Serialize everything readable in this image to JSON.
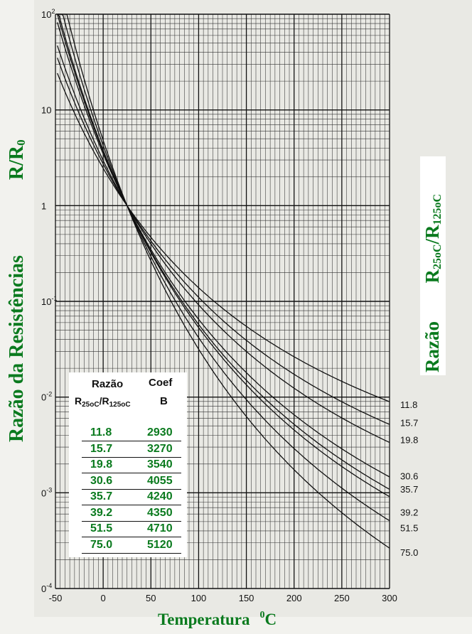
{
  "chart_data": {
    "type": "line",
    "title": "",
    "xlabel": "Temperatura",
    "xlabel_unit_sup": "0",
    "xlabel_unit": "C",
    "ylabel_left_main": "Razão da Resistências",
    "ylabel_left_ratio": "R/R",
    "ylabel_left_sub": "0",
    "ylabel_right_main": "Razão",
    "ylabel_right_r1": "R",
    "ylabel_right_sub1": "25oC",
    "ylabel_right_r2": "/R",
    "ylabel_right_sub2": "125oC",
    "y_scale": "log",
    "xlim": [
      -50,
      300
    ],
    "ylim": [
      0.0001,
      100
    ],
    "x_ticks": [
      -50,
      0,
      50,
      100,
      150,
      200,
      250,
      300
    ],
    "x_tick_labels": [
      "-50",
      "0",
      "50",
      "100",
      "150",
      "200",
      "250",
      "300"
    ],
    "y_ticks": [
      {
        "base": "10",
        "exp": "2",
        "label": ""
      },
      {
        "base": "10",
        "exp": "",
        "label": ""
      },
      {
        "base": "1",
        "exp": "",
        "label": ""
      },
      {
        "base": "10",
        "exp": "-1",
        "label": ""
      },
      {
        "base": "0",
        "exp": "-2",
        "label": ""
      },
      {
        "base": "0",
        "exp": "-3",
        "label": ""
      },
      {
        "base": "0",
        "exp": "-4",
        "label": ""
      }
    ],
    "grid": true,
    "x_ref": 25,
    "series": [
      {
        "name": "11.8",
        "coef": "2930",
        "B": 2930,
        "y_end": 0.0084
      },
      {
        "name": "15.7",
        "coef": "3270",
        "B": 3270,
        "y_end": 0.0054
      },
      {
        "name": "19.8",
        "coef": "3540",
        "B": 3540,
        "y_end": 0.0036
      },
      {
        "name": "30.6",
        "coef": "4055",
        "B": 4055,
        "y_end": 0.0015
      },
      {
        "name": "35.7",
        "coef": "4240",
        "B": 4240,
        "y_end": 0.0011
      },
      {
        "name": "39.2",
        "coef": "4350",
        "B": 4350,
        "y_end": 0.00063
      },
      {
        "name": "51.5",
        "coef": "4710",
        "B": 4710,
        "y_end": 0.00043
      },
      {
        "name": "75.0",
        "coef": "5120",
        "B": 5120,
        "y_end": 0.00024
      }
    ],
    "legend_table": {
      "header_ratio": "Razão",
      "header_ratio_line2_r1": "R",
      "header_ratio_line2_sub1": "25oC",
      "header_ratio_line2_r2": "/R",
      "header_ratio_line2_sub2": "125oC",
      "header_coef": "Coef",
      "header_coef_line2": "B",
      "position": "lower-left"
    },
    "colors": {
      "label_green": "#0a7a1e",
      "grid": "#1a1a1a",
      "curves": "#111111"
    }
  }
}
